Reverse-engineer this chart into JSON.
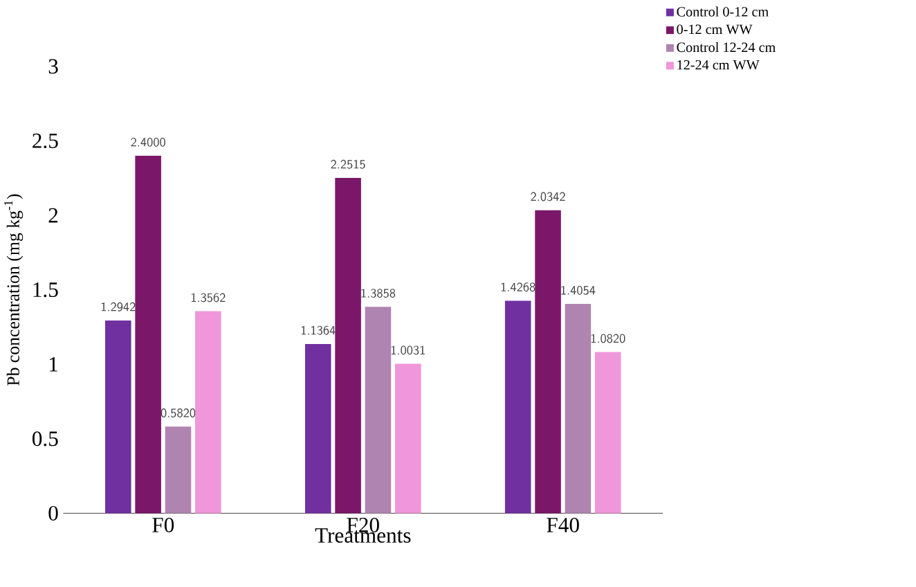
{
  "chart_data": {
    "type": "bar",
    "xlabel": "Treatments",
    "ylabel": "Pb concentration (mg kg$^{-1}$)",
    "categories": [
      "F0",
      "F20",
      "F40"
    ],
    "series": [
      {
        "name": "Control 0-12 cm",
        "color": "#7030a0",
        "values": [
          1.2942,
          1.1364,
          1.4268
        ],
        "value_labels": [
          "1.2942",
          "1.1364",
          "1.4268"
        ]
      },
      {
        "name": "0-12 cm WW",
        "color": "#7b1768",
        "values": [
          2.4,
          2.2515,
          2.0342
        ],
        "value_labels": [
          "2.4000",
          "2.2515",
          "2.0342"
        ]
      },
      {
        "name": "Control 12-24 cm",
        "color": "#b084b0",
        "values": [
          0.582,
          1.3858,
          1.4054
        ],
        "value_labels": [
          "0.5820",
          "1.3858",
          "1.4054"
        ]
      },
      {
        "name": "12-24 cm WW",
        "color": "#f096da",
        "values": [
          1.3562,
          1.0031,
          1.082
        ],
        "value_labels": [
          "1.3562",
          "1.0031",
          "1.0820"
        ]
      }
    ],
    "ylim": [
      0,
      3
    ],
    "yticks": [
      0,
      0.5,
      1,
      1.5,
      2,
      2.5,
      3
    ],
    "grid": false,
    "legend": "top right"
  }
}
